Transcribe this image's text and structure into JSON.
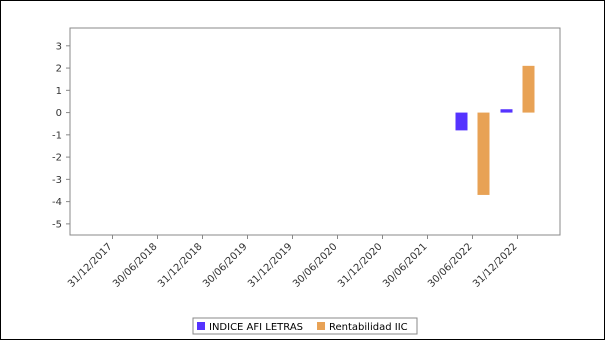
{
  "chart_data": {
    "type": "bar",
    "categories": [
      "31/12/2017",
      "30/06/2018",
      "31/12/2018",
      "30/06/2019",
      "31/12/2019",
      "30/06/2020",
      "31/12/2020",
      "30/06/2021",
      "30/06/2022",
      "31/12/2022"
    ],
    "series": [
      {
        "name": "INDICE AFI LETRAS",
        "color": "#5533ff",
        "values": [
          null,
          null,
          null,
          null,
          null,
          null,
          null,
          null,
          -0.8,
          0.15
        ]
      },
      {
        "name": "Rentabilidad IIC",
        "color": "#e8a255",
        "values": [
          null,
          null,
          null,
          null,
          null,
          null,
          null,
          null,
          -3.7,
          2.1
        ]
      }
    ],
    "yticks": [
      3,
      2,
      1,
      0,
      -1,
      -2,
      -3,
      -4,
      -5
    ],
    "ylim": [
      -5.5,
      3.8
    ],
    "title": "",
    "xlabel": "",
    "ylabel": "",
    "grid": false,
    "legend_position": "bottom"
  }
}
